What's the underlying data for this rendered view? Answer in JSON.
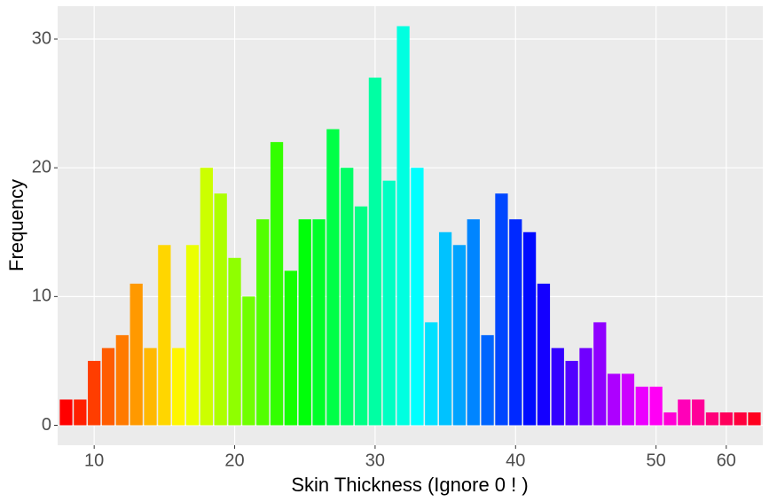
{
  "chart_data": {
    "type": "bar",
    "x_label": "Skin Thickness (Ignore 0 ! )",
    "y_label": "Frequency",
    "categories": [
      null,
      null,
      10,
      null,
      null,
      null,
      null,
      null,
      null,
      null,
      null,
      null,
      20,
      null,
      null,
      null,
      null,
      null,
      null,
      null,
      null,
      null,
      30,
      null,
      null,
      null,
      null,
      null,
      null,
      null,
      null,
      null,
      40,
      null,
      null,
      null,
      null,
      null,
      null,
      null,
      null,
      null,
      50,
      null,
      null,
      null,
      null,
      60,
      null,
      null
    ],
    "values": [
      2,
      2,
      5,
      6,
      7,
      11,
      6,
      14,
      6,
      14,
      20,
      18,
      13,
      10,
      16,
      22,
      12,
      16,
      16,
      23,
      20,
      17,
      27,
      19,
      31,
      20,
      8,
      15,
      14,
      16,
      7,
      18,
      16,
      15,
      11,
      6,
      5,
      6,
      8,
      4,
      4,
      3,
      3,
      1,
      2,
      2,
      1,
      1,
      1,
      1
    ],
    "palette": "rainbow",
    "ylim": [
      -1.55,
      32.55
    ],
    "yticks": [
      0,
      10,
      20,
      30
    ],
    "grid": true
  }
}
